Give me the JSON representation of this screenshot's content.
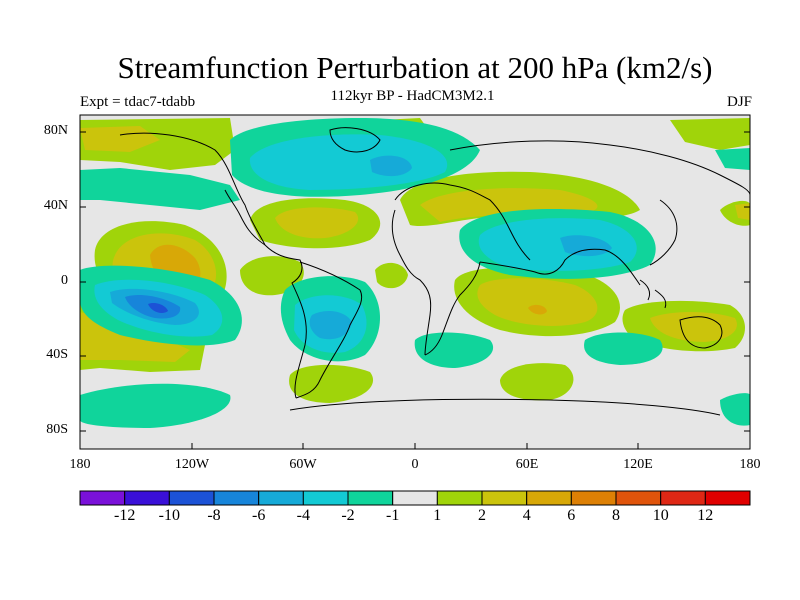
{
  "title": "Streamfunction Perturbation at 200 hPa (km2/s)",
  "subtitle": "112kyr BP - HadCM3M2.1",
  "experiment": "Expt = tdac7-tdabb",
  "season": "DJF",
  "lat_labels": [
    "80N",
    "40N",
    "0",
    "40S",
    "80S"
  ],
  "lon_labels": [
    "180",
    "120W",
    "60W",
    "0",
    "60E",
    "120E",
    "180"
  ],
  "colorbar": {
    "labels": [
      "-12",
      "-10",
      "-8",
      "-6",
      "-4",
      "-2",
      "-1",
      "1",
      "2",
      "4",
      "6",
      "8",
      "10",
      "12"
    ],
    "colors": [
      "#7a11d9",
      "#3a10d8",
      "#1c52d6",
      "#1785da",
      "#16aad8",
      "#13cad4",
      "#10d49b",
      "#e6e6e6",
      "#a0d40a",
      "#cbc40c",
      "#d8a807",
      "#dd8005",
      "#e0540b",
      "#df2815",
      "#e00000"
    ]
  }
}
